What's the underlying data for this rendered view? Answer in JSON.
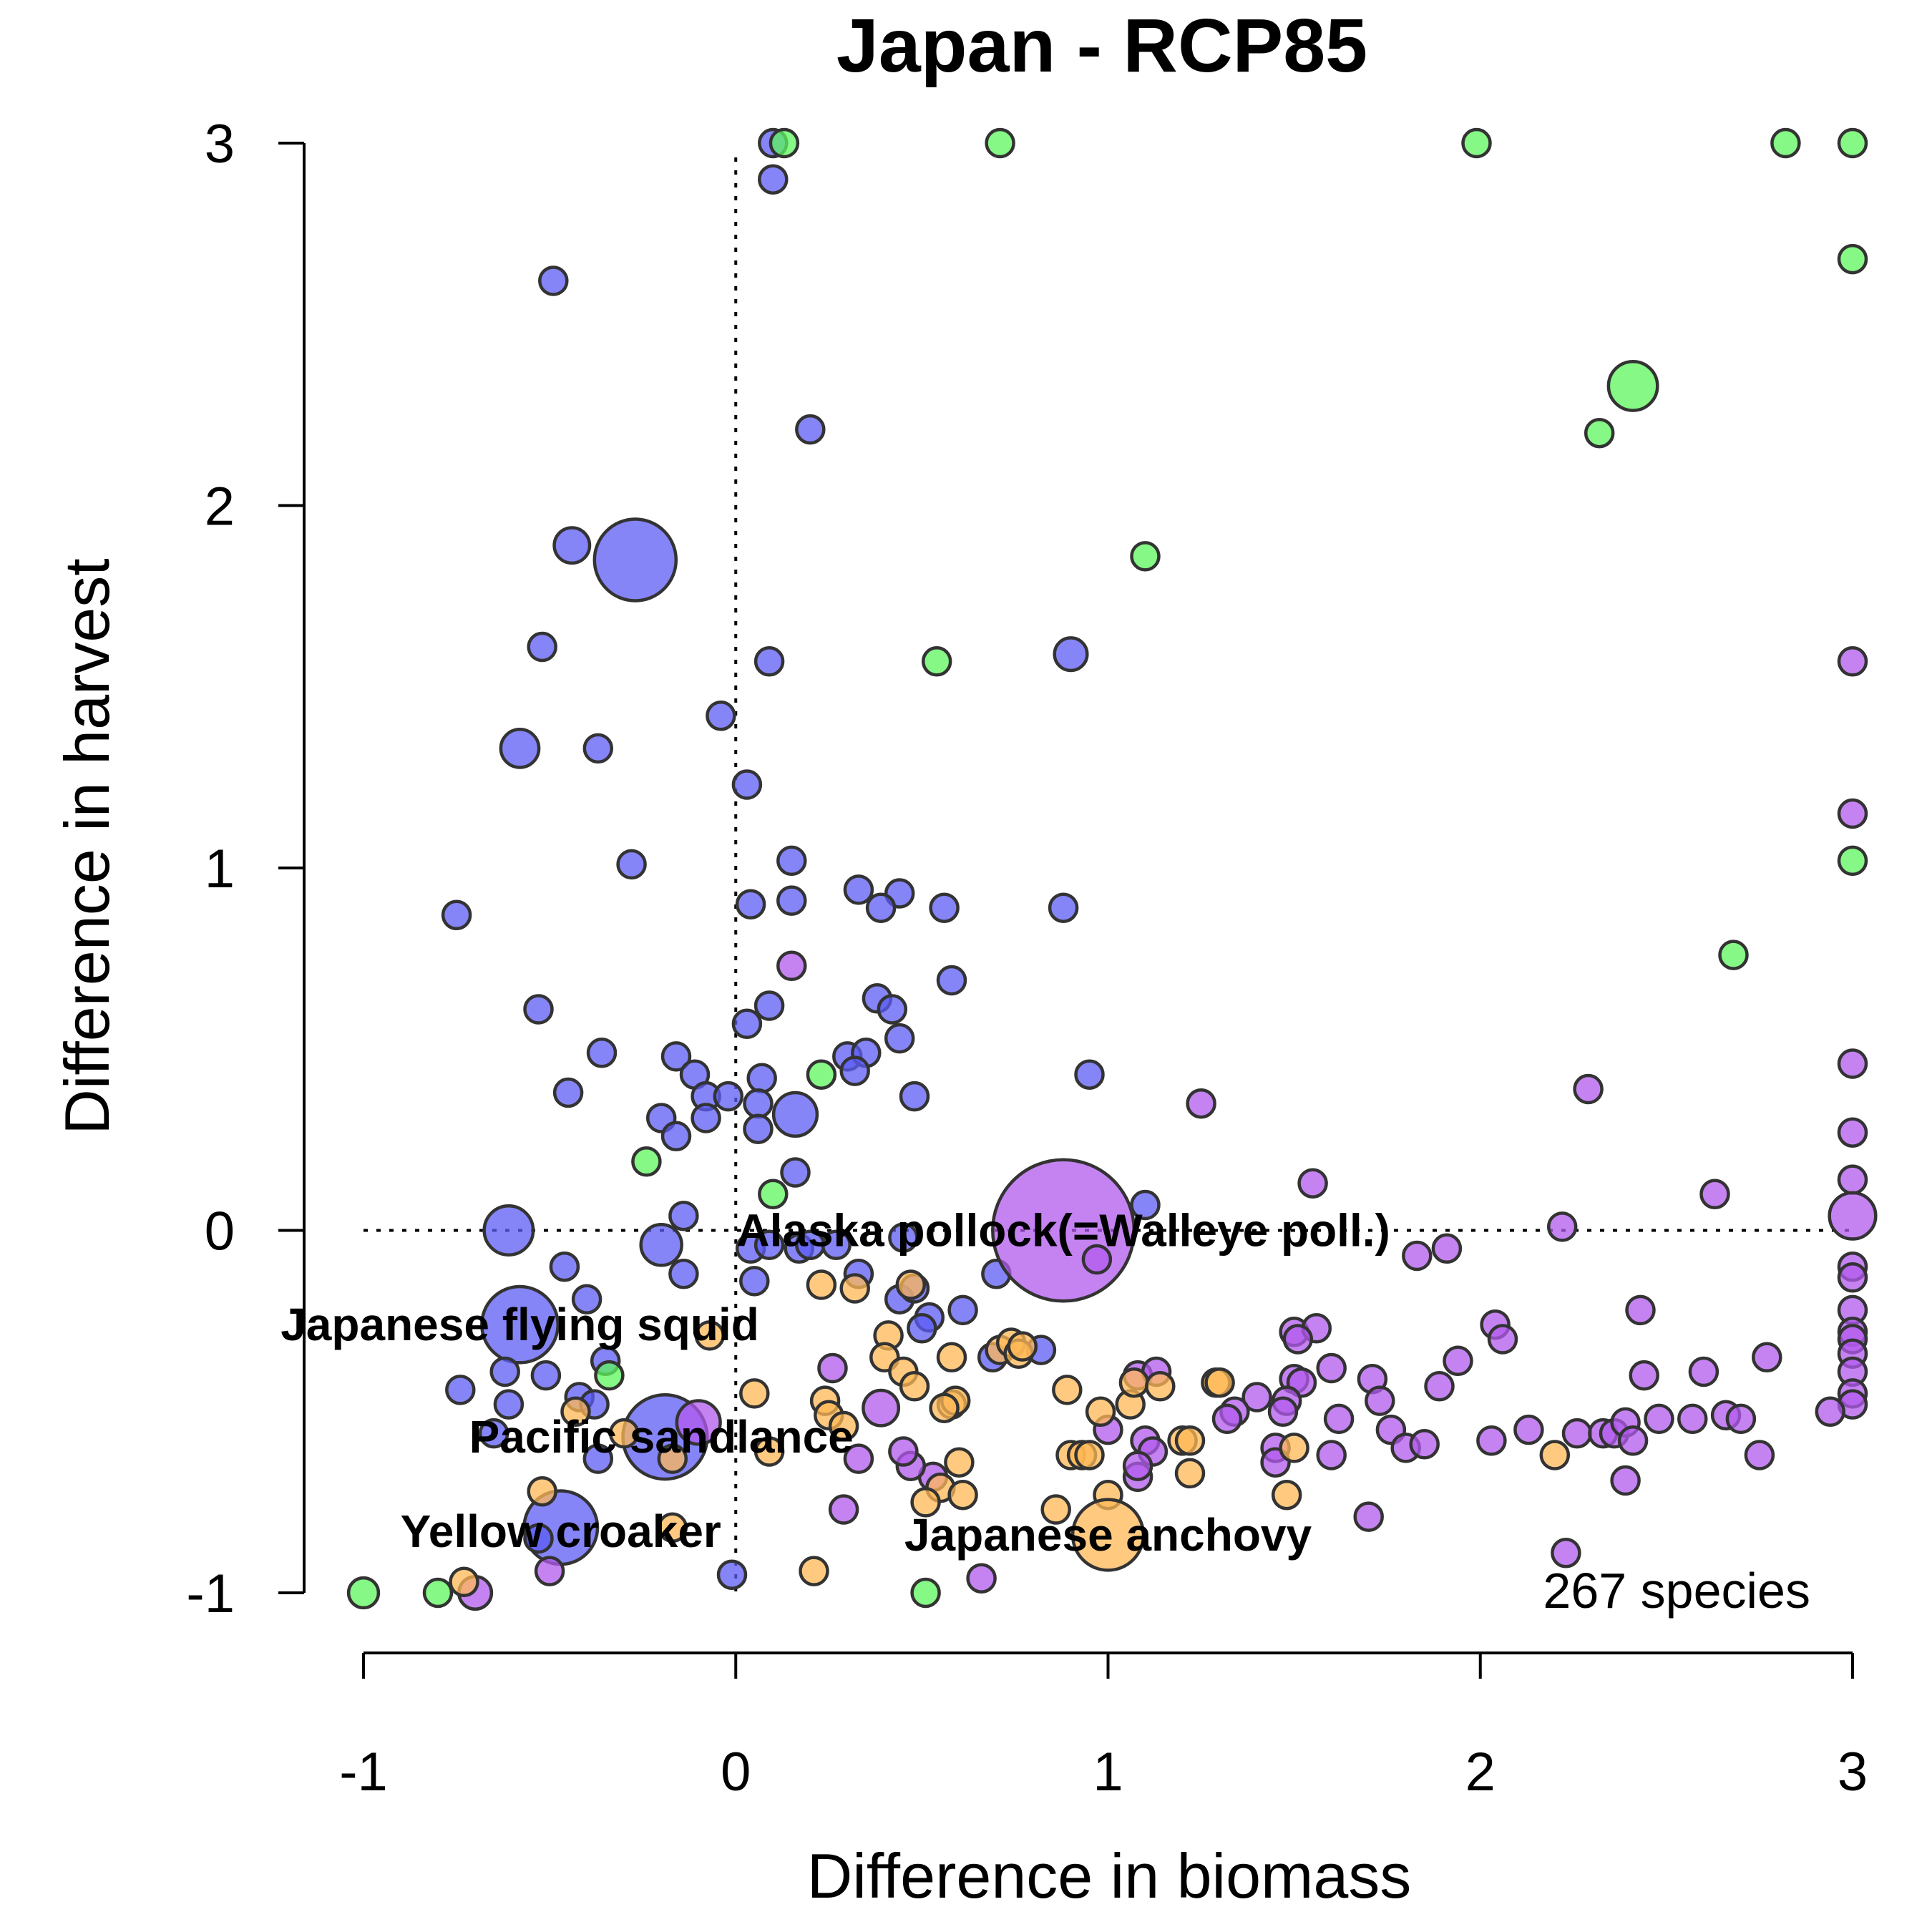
{
  "chart_data": {
    "type": "scatter",
    "title": "Japan - RCP85",
    "xlabel": "Difference in biomass",
    "ylabel": "Difference in harvest",
    "xlim": [
      -1,
      3
    ],
    "ylim": [
      -1,
      3
    ],
    "xticks": [
      "-1",
      "0",
      "1",
      "2",
      "3"
    ],
    "yticks": [
      "-1",
      "0",
      "1",
      "2",
      "3"
    ],
    "reference_lines": {
      "x": 0,
      "y": 0,
      "style": "dotted"
    },
    "note": "267 species",
    "colors": {
      "blue": "#5c5cf5",
      "green": "#5cf55c",
      "purple": "#b159ee",
      "orange": "#ffb856"
    },
    "labels": [
      {
        "text": "Alaska pollock(=Walleye poll.)",
        "x": 0.88,
        "y": 0.0
      },
      {
        "text": "Japanese flying squid",
        "x": -0.58,
        "y": -0.26
      },
      {
        "text": "Pacific sandlance",
        "x": -0.2,
        "y": -0.57
      },
      {
        "text": "Yellow croaker",
        "x": -0.47,
        "y": -0.83
      },
      {
        "text": "Japanese anchovy",
        "x": 1.0,
        "y": -0.84
      }
    ],
    "series": [
      {
        "color": "blue",
        "points": [
          [
            -0.27,
            1.85,
            3
          ],
          [
            -0.44,
            1.89,
            1.3
          ],
          [
            -0.49,
            2.62,
            1
          ],
          [
            -0.52,
            1.61,
            1
          ],
          [
            -0.58,
            1.33,
            1.4
          ],
          [
            -0.37,
            1.33,
            1
          ],
          [
            -0.28,
            1.01,
            1
          ],
          [
            -0.75,
            0.87,
            1
          ],
          [
            -0.53,
            0.61,
            1
          ],
          [
            -0.36,
            0.49,
            1
          ],
          [
            -0.45,
            0.38,
            1
          ],
          [
            0.1,
            2.9,
            1
          ],
          [
            0.1,
            3.0,
            1
          ],
          [
            0.2,
            2.21,
            1
          ],
          [
            0.09,
            1.57,
            1
          ],
          [
            -0.04,
            1.42,
            1
          ],
          [
            0.03,
            1.23,
            1
          ],
          [
            0.9,
            1.59,
            1.2
          ],
          [
            0.15,
            1.02,
            1
          ],
          [
            0.04,
            0.9,
            1
          ],
          [
            0.15,
            0.91,
            1
          ],
          [
            0.33,
            0.94,
            1
          ],
          [
            0.44,
            0.93,
            1
          ],
          [
            0.39,
            0.89,
            1
          ],
          [
            0.56,
            0.89,
            1
          ],
          [
            0.88,
            0.89,
            1
          ],
          [
            0.58,
            0.69,
            1
          ],
          [
            0.38,
            0.64,
            1
          ],
          [
            0.42,
            0.61,
            1
          ],
          [
            0.09,
            0.62,
            1
          ],
          [
            0.03,
            0.57,
            1
          ],
          [
            0.44,
            0.53,
            1
          ],
          [
            0.3,
            0.48,
            1
          ],
          [
            0.35,
            0.49,
            1
          ],
          [
            0.32,
            0.44,
            1
          ],
          [
            -0.16,
            0.48,
            1
          ],
          [
            -0.11,
            0.43,
            1
          ],
          [
            0.07,
            0.42,
            1
          ],
          [
            0.95,
            0.43,
            1
          ],
          [
            0.48,
            0.37,
            1
          ],
          [
            -0.08,
            0.37,
            1
          ],
          [
            -0.02,
            0.37,
            1
          ],
          [
            0.06,
            0.35,
            1
          ],
          [
            -0.2,
            0.31,
            1
          ],
          [
            -0.08,
            0.31,
            1
          ],
          [
            0.06,
            0.28,
            1
          ],
          [
            0.16,
            0.32,
            1.6
          ],
          [
            -0.16,
            0.26,
            1
          ],
          [
            0.16,
            0.16,
            1
          ],
          [
            -0.61,
            0.0,
            1.8
          ],
          [
            -0.2,
            -0.04,
            1.5
          ],
          [
            -0.14,
            0.04,
            1
          ],
          [
            -0.46,
            -0.1,
            1
          ],
          [
            -0.14,
            -0.12,
            1
          ],
          [
            0.04,
            -0.05,
            1
          ],
          [
            0.09,
            -0.04,
            1
          ],
          [
            0.17,
            -0.05,
            1
          ],
          [
            0.2,
            -0.04,
            1
          ],
          [
            0.27,
            -0.04,
            1
          ],
          [
            0.45,
            -0.02,
            1
          ],
          [
            1.1,
            0.07,
            1
          ],
          [
            0.7,
            -0.12,
            1
          ],
          [
            0.33,
            -0.12,
            1
          ],
          [
            0.05,
            -0.14,
            1
          ],
          [
            -0.4,
            -0.19,
            1
          ],
          [
            -0.58,
            -0.26,
            2.8
          ],
          [
            0.44,
            -0.19,
            1
          ],
          [
            0.48,
            -0.16,
            1
          ],
          [
            0.52,
            -0.24,
            1
          ],
          [
            0.61,
            -0.22,
            1
          ],
          [
            0.5,
            -0.27,
            1
          ],
          [
            0.69,
            -0.35,
            1
          ],
          [
            0.82,
            -0.33,
            1
          ],
          [
            -0.35,
            -0.36,
            1
          ],
          [
            -0.62,
            -0.39,
            1
          ],
          [
            -0.51,
            -0.4,
            1
          ],
          [
            -0.74,
            -0.44,
            1
          ],
          [
            -0.42,
            -0.46,
            1
          ],
          [
            -0.61,
            -0.48,
            1
          ],
          [
            -0.38,
            -0.48,
            1
          ],
          [
            -0.65,
            -0.56,
            1
          ],
          [
            -0.37,
            -0.63,
            1
          ],
          [
            -0.19,
            -0.57,
            3.1
          ],
          [
            -0.47,
            -0.82,
            2.7
          ],
          [
            -0.53,
            -0.85,
            1
          ],
          [
            -0.01,
            -0.95,
            1
          ]
        ]
      },
      {
        "color": "green",
        "points": [
          [
            0.13,
            3.0,
            1
          ],
          [
            0.71,
            3.0,
            1
          ],
          [
            1.99,
            3.0,
            1
          ],
          [
            2.82,
            3.0,
            1
          ],
          [
            3.0,
            3.0,
            1
          ],
          [
            3.0,
            2.68,
            1
          ],
          [
            2.41,
            2.33,
            1.8
          ],
          [
            2.32,
            2.2,
            1
          ],
          [
            1.1,
            1.86,
            1
          ],
          [
            0.54,
            1.57,
            1
          ],
          [
            3.0,
            1.02,
            1
          ],
          [
            2.68,
            0.76,
            1
          ],
          [
            0.23,
            0.43,
            1
          ],
          [
            -0.24,
            0.19,
            1
          ],
          [
            0.1,
            0.1,
            1
          ],
          [
            -0.34,
            -0.4,
            1
          ],
          [
            -1.0,
            -1.0,
            1.1
          ],
          [
            -0.8,
            -1.0,
            1
          ],
          [
            0.51,
            -1.0,
            1
          ]
        ]
      },
      {
        "color": "purple",
        "points": [
          [
            0.15,
            0.73,
            1
          ],
          [
            1.25,
            0.35,
            1
          ],
          [
            2.29,
            0.39,
            1
          ],
          [
            3.0,
            0.46,
            1
          ],
          [
            3.0,
            0.27,
            1
          ],
          [
            3.0,
            1.57,
            1
          ],
          [
            3.0,
            1.15,
            1
          ],
          [
            3.0,
            0.14,
            1
          ],
          [
            3.0,
            0.04,
            1.7
          ],
          [
            2.63,
            0.1,
            1
          ],
          [
            1.55,
            0.13,
            1
          ],
          [
            2.22,
            0.01,
            1
          ],
          [
            0.88,
            0.0,
            5.2
          ],
          [
            0.97,
            -0.08,
            1
          ],
          [
            1.83,
            -0.07,
            1
          ],
          [
            1.91,
            -0.05,
            1
          ],
          [
            3.0,
            -0.1,
            1
          ],
          [
            3.0,
            -0.13,
            1
          ],
          [
            3.0,
            -0.22,
            1
          ],
          [
            3.0,
            -0.28,
            1
          ],
          [
            3.0,
            -0.3,
            1
          ],
          [
            3.0,
            -0.34,
            1
          ],
          [
            3.0,
            -0.39,
            1
          ],
          [
            3.0,
            -0.45,
            1
          ],
          [
            3.0,
            -0.48,
            1
          ],
          [
            2.94,
            -0.5,
            1
          ],
          [
            2.77,
            -0.35,
            1
          ],
          [
            2.6,
            -0.39,
            1
          ],
          [
            2.43,
            -0.22,
            1
          ],
          [
            2.44,
            -0.4,
            1
          ],
          [
            2.04,
            -0.26,
            1
          ],
          [
            2.06,
            -0.3,
            1
          ],
          [
            1.5,
            -0.28,
            1
          ],
          [
            1.56,
            -0.27,
            1
          ],
          [
            1.51,
            -0.3,
            1
          ],
          [
            1.6,
            -0.38,
            1
          ],
          [
            1.5,
            -0.41,
            1
          ],
          [
            1.52,
            -0.42,
            1
          ],
          [
            1.71,
            -0.41,
            1
          ],
          [
            1.73,
            -0.47,
            1
          ],
          [
            1.89,
            -0.43,
            1
          ],
          [
            1.94,
            -0.36,
            1
          ],
          [
            1.48,
            -0.47,
            1
          ],
          [
            1.47,
            -0.5,
            1
          ],
          [
            1.4,
            -0.46,
            1
          ],
          [
            1.34,
            -0.5,
            1
          ],
          [
            1.32,
            -0.52,
            1
          ],
          [
            1.08,
            -0.4,
            1
          ],
          [
            1.13,
            -0.39,
            1
          ],
          [
            1.0,
            -0.55,
            1
          ],
          [
            1.1,
            -0.58,
            1
          ],
          [
            1.12,
            -0.61,
            1
          ],
          [
            1.62,
            -0.52,
            1
          ],
          [
            1.76,
            -0.55,
            1
          ],
          [
            1.8,
            -0.6,
            1
          ],
          [
            1.85,
            -0.59,
            1
          ],
          [
            1.45,
            -0.6,
            1
          ],
          [
            1.45,
            -0.64,
            1
          ],
          [
            1.6,
            -0.62,
            1
          ],
          [
            2.03,
            -0.58,
            1
          ],
          [
            2.13,
            -0.55,
            1
          ],
          [
            2.26,
            -0.56,
            1
          ],
          [
            2.33,
            -0.56,
            1
          ],
          [
            2.36,
            -0.56,
            1
          ],
          [
            2.39,
            -0.53,
            1
          ],
          [
            2.41,
            -0.58,
            1
          ],
          [
            2.48,
            -0.52,
            1
          ],
          [
            2.57,
            -0.52,
            1
          ],
          [
            2.66,
            -0.51,
            1
          ],
          [
            2.7,
            -0.52,
            1
          ],
          [
            2.75,
            -0.62,
            1
          ],
          [
            2.39,
            -0.69,
            1
          ],
          [
            2.23,
            -0.89,
            1
          ],
          [
            1.7,
            -0.79,
            1
          ],
          [
            1.08,
            -0.68,
            1
          ],
          [
            1.08,
            -0.65,
            1
          ],
          [
            0.53,
            -0.68,
            1
          ],
          [
            0.47,
            -0.65,
            1
          ],
          [
            0.45,
            -0.61,
            1
          ],
          [
            0.33,
            -0.63,
            1
          ],
          [
            0.29,
            -0.77,
            1
          ],
          [
            0.66,
            -0.96,
            1
          ],
          [
            0.26,
            -0.38,
            1
          ],
          [
            0.39,
            -0.49,
            1.3
          ],
          [
            -0.1,
            -0.53,
            1.6
          ],
          [
            -0.5,
            -0.94,
            1
          ],
          [
            -0.7,
            -1.0,
            1.2
          ]
        ]
      },
      {
        "color": "orange",
        "points": [
          [
            0.23,
            -0.15,
            1
          ],
          [
            0.32,
            -0.16,
            1
          ],
          [
            0.47,
            -0.15,
            1
          ],
          [
            0.41,
            -0.29,
            1
          ],
          [
            0.4,
            -0.35,
            1
          ],
          [
            0.58,
            -0.35,
            1
          ],
          [
            0.71,
            -0.33,
            1
          ],
          [
            0.74,
            -0.31,
            1
          ],
          [
            0.76,
            -0.34,
            1
          ],
          [
            0.77,
            -0.32,
            1
          ],
          [
            0.45,
            -0.39,
            1
          ],
          [
            0.48,
            -0.43,
            1
          ],
          [
            0.05,
            -0.45,
            1
          ],
          [
            0.24,
            -0.47,
            1
          ],
          [
            0.25,
            -0.51,
            1
          ],
          [
            0.29,
            -0.54,
            1
          ],
          [
            0.58,
            -0.48,
            1
          ],
          [
            0.59,
            -0.47,
            1
          ],
          [
            0.56,
            -0.49,
            1
          ],
          [
            0.89,
            -0.44,
            1
          ],
          [
            0.98,
            -0.5,
            1
          ],
          [
            1.06,
            -0.48,
            1
          ],
          [
            1.07,
            -0.42,
            1
          ],
          [
            1.14,
            -0.43,
            1
          ],
          [
            1.29,
            -0.42,
            1
          ],
          [
            1.3,
            -0.42,
            1
          ],
          [
            1.2,
            -0.58,
            1
          ],
          [
            1.22,
            -0.58,
            1
          ],
          [
            1.5,
            -0.6,
            1
          ],
          [
            0.9,
            -0.62,
            1
          ],
          [
            0.93,
            -0.62,
            1
          ],
          [
            0.95,
            -0.62,
            1
          ],
          [
            0.6,
            -0.64,
            1
          ],
          [
            0.55,
            -0.71,
            1
          ],
          [
            0.61,
            -0.73,
            1
          ],
          [
            0.51,
            -0.75,
            1
          ],
          [
            0.86,
            -0.77,
            1
          ],
          [
            1.0,
            -0.73,
            1
          ],
          [
            1.22,
            -0.67,
            1
          ],
          [
            1.48,
            -0.73,
            1
          ],
          [
            2.2,
            -0.62,
            1
          ],
          [
            1.0,
            -0.84,
            2.6
          ],
          [
            0.21,
            -0.94,
            1
          ],
          [
            -0.43,
            -0.5,
            1
          ],
          [
            -0.3,
            -0.56,
            1
          ],
          [
            -0.17,
            -0.63,
            1
          ],
          [
            0.09,
            -0.61,
            1
          ],
          [
            -0.52,
            -0.72,
            1
          ],
          [
            -0.17,
            -0.82,
            1
          ],
          [
            -0.07,
            -0.29,
            1
          ],
          [
            -0.73,
            -0.97,
            1
          ]
        ]
      }
    ]
  }
}
